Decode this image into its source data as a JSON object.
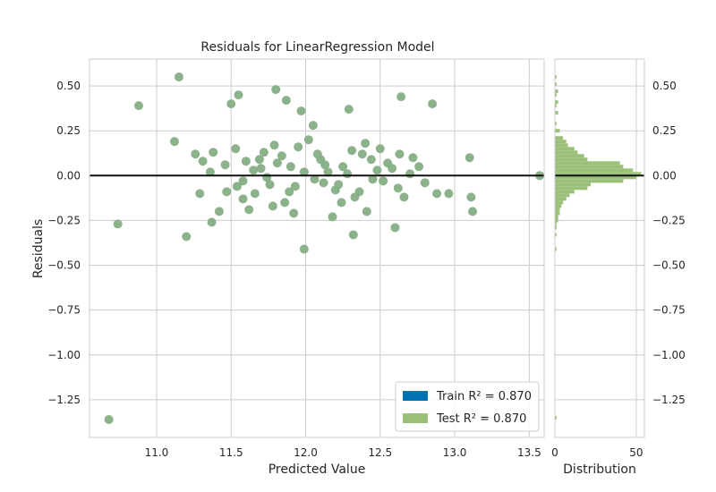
{
  "chart_data": {
    "type": "scatter",
    "title": "Residuals for LinearRegression Model",
    "xlabel": "Predicted Value",
    "ylabel": "Residuals",
    "xlim": [
      10.55,
      13.6
    ],
    "ylim": [
      -1.46,
      0.65
    ],
    "xticks": [
      "11.0",
      "11.5",
      "12.0",
      "12.5",
      "13.0",
      "13.5"
    ],
    "xtick_values": [
      11.0,
      11.5,
      12.0,
      12.5,
      13.0,
      13.5
    ],
    "yticks": [
      "0.50",
      "0.25",
      "0.00",
      "−0.25",
      "−0.50",
      "−0.75",
      "−1.00",
      "−1.25"
    ],
    "ytick_values": [
      0.5,
      0.25,
      0.0,
      -0.25,
      -0.5,
      -0.75,
      -1.0,
      -1.25
    ],
    "zero_line": 0.0,
    "grid": true,
    "legend_position": "lower right",
    "legend": [
      {
        "label": "Train",
        "r2_text": "R² = 0.870",
        "color": "#0072B2"
      },
      {
        "label": "Test",
        "r2_text": "R² = 0.870",
        "color": "#9BC179"
      }
    ],
    "point_color": "#86AE85",
    "series": [
      {
        "name": "Train",
        "points": [
          [
            11.15,
            0.55
          ],
          [
            10.88,
            0.39
          ],
          [
            10.74,
            -0.27
          ],
          [
            10.68,
            -1.36
          ],
          [
            11.2,
            -0.34
          ],
          [
            11.12,
            0.19
          ],
          [
            11.55,
            0.45
          ],
          [
            11.5,
            0.4
          ],
          [
            11.8,
            0.48
          ],
          [
            11.87,
            0.42
          ],
          [
            12.05,
            0.28
          ],
          [
            11.97,
            0.36
          ],
          [
            12.29,
            0.37
          ],
          [
            12.64,
            0.44
          ],
          [
            12.85,
            0.4
          ],
          [
            13.1,
            0.1
          ],
          [
            13.11,
            -0.12
          ],
          [
            13.12,
            -0.2
          ],
          [
            13.57,
            0.0
          ],
          [
            12.96,
            -0.1
          ],
          [
            12.88,
            -0.1
          ],
          [
            12.6,
            -0.29
          ],
          [
            12.32,
            -0.33
          ],
          [
            11.99,
            -0.41
          ],
          [
            11.92,
            -0.21
          ],
          [
            11.29,
            -0.1
          ],
          [
            11.37,
            -0.26
          ],
          [
            11.26,
            0.12
          ],
          [
            11.31,
            0.08
          ],
          [
            11.42,
            -0.2
          ],
          [
            11.53,
            0.15
          ],
          [
            11.6,
            0.08
          ],
          [
            11.7,
            0.04
          ],
          [
            11.76,
            -0.05
          ],
          [
            11.78,
            -0.17
          ],
          [
            11.66,
            -0.1
          ],
          [
            11.84,
            0.11
          ],
          [
            11.9,
            0.05
          ],
          [
            12.1,
            0.09
          ],
          [
            12.15,
            0.02
          ],
          [
            12.2,
            -0.08
          ],
          [
            12.25,
            0.05
          ],
          [
            12.38,
            0.12
          ],
          [
            12.45,
            -0.02
          ],
          [
            12.55,
            0.07
          ],
          [
            12.62,
            -0.07
          ],
          [
            12.72,
            0.1
          ],
          [
            12.8,
            -0.04
          ],
          [
            11.95,
            0.16
          ],
          [
            12.02,
            0.2
          ],
          [
            11.72,
            0.13
          ],
          [
            11.58,
            -0.03
          ],
          [
            12.33,
            -0.12
          ],
          [
            12.48,
            0.03
          ],
          [
            11.86,
            -0.15
          ],
          [
            12.12,
            -0.04
          ],
          [
            11.47,
            -0.09
          ],
          [
            12.7,
            0.01
          ],
          [
            12.4,
            0.18
          ],
          [
            11.36,
            0.02
          ]
        ]
      },
      {
        "name": "Test",
        "points": [
          [
            11.38,
            0.13
          ],
          [
            11.46,
            0.06
          ],
          [
            11.58,
            -0.13
          ],
          [
            11.65,
            0.03
          ],
          [
            11.74,
            -0.01
          ],
          [
            11.81,
            0.07
          ],
          [
            11.93,
            -0.06
          ],
          [
            11.99,
            0.02
          ],
          [
            12.06,
            -0.02
          ],
          [
            12.13,
            0.06
          ],
          [
            12.22,
            -0.05
          ],
          [
            12.28,
            0.01
          ],
          [
            12.36,
            -0.09
          ],
          [
            12.44,
            0.09
          ],
          [
            12.52,
            -0.03
          ],
          [
            12.58,
            0.04
          ],
          [
            12.66,
            -0.12
          ],
          [
            12.76,
            0.05
          ],
          [
            11.62,
            -0.19
          ],
          [
            12.41,
            -0.2
          ],
          [
            12.18,
            -0.23
          ],
          [
            11.54,
            -0.06
          ],
          [
            12.31,
            0.14
          ],
          [
            11.89,
            -0.09
          ],
          [
            12.08,
            0.12
          ],
          [
            11.79,
            0.17
          ],
          [
            12.24,
            -0.15
          ],
          [
            12.5,
            0.15
          ],
          [
            11.69,
            0.09
          ],
          [
            12.63,
            0.12
          ]
        ]
      }
    ],
    "histogram": {
      "xlabel": "Distribution",
      "xticks": [
        "0",
        "50"
      ],
      "xtick_values": [
        0,
        50
      ],
      "xlim": [
        0,
        55
      ],
      "bin_width": 0.02,
      "bins": [
        [
          0.54,
          1
        ],
        [
          0.5,
          1
        ],
        [
          0.46,
          2
        ],
        [
          0.44,
          1
        ],
        [
          0.4,
          2
        ],
        [
          0.38,
          1
        ],
        [
          0.34,
          2
        ],
        [
          0.28,
          1
        ],
        [
          0.24,
          3
        ],
        [
          0.2,
          5
        ],
        [
          0.18,
          7
        ],
        [
          0.16,
          8
        ],
        [
          0.14,
          12
        ],
        [
          0.12,
          14
        ],
        [
          0.1,
          18
        ],
        [
          0.08,
          20
        ],
        [
          0.06,
          40
        ],
        [
          0.04,
          42
        ],
        [
          0.02,
          48
        ],
        [
          0.0,
          53
        ],
        [
          -0.02,
          50
        ],
        [
          -0.04,
          42
        ],
        [
          -0.06,
          22
        ],
        [
          -0.08,
          20
        ],
        [
          -0.1,
          12
        ],
        [
          -0.12,
          9
        ],
        [
          -0.14,
          7
        ],
        [
          -0.16,
          5
        ],
        [
          -0.18,
          4
        ],
        [
          -0.2,
          3
        ],
        [
          -0.22,
          3
        ],
        [
          -0.24,
          2
        ],
        [
          -0.26,
          2
        ],
        [
          -0.28,
          1
        ],
        [
          -0.3,
          1
        ],
        [
          -0.34,
          1
        ],
        [
          -0.42,
          1
        ],
        [
          -1.36,
          1
        ]
      ]
    }
  }
}
